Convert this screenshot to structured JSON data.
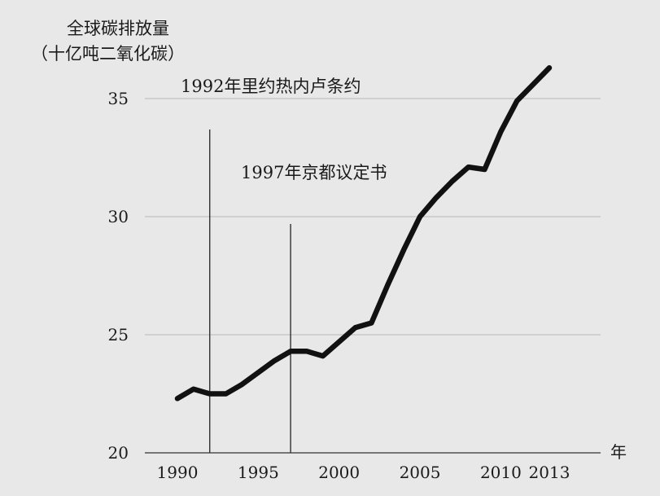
{
  "chart_data": {
    "type": "line",
    "title": "",
    "ylabel_lines": [
      "全球碳排放量",
      "（十亿吨二氧化碳）"
    ],
    "xlabel": "年",
    "xlim": [
      1990,
      2013
    ],
    "ylim": [
      20,
      36.5
    ],
    "yticks": [
      20,
      25,
      30,
      35
    ],
    "xticks": [
      1990,
      1995,
      2000,
      2005,
      2010,
      2013
    ],
    "grid": true,
    "series": [
      {
        "x": [
          1990,
          1991,
          1992,
          1993,
          1994,
          1995,
          1996,
          1997,
          1998,
          1999,
          2000,
          2001,
          2002,
          2003,
          2004,
          2005,
          2006,
          2007,
          2008,
          2009,
          2010,
          2011,
          2012,
          2013
        ],
        "values": [
          22.3,
          22.7,
          22.5,
          22.5,
          22.9,
          23.4,
          23.9,
          24.3,
          24.3,
          24.1,
          24.7,
          25.3,
          25.5,
          27.1,
          28.6,
          30.0,
          30.8,
          31.5,
          32.1,
          32.0,
          33.6,
          34.9,
          35.6,
          36.3
        ],
        "color": "#111111"
      }
    ],
    "annotations": [
      {
        "x": 1992,
        "y_top": 35.0,
        "text": "1992年里约热内卢条约"
      },
      {
        "x": 1997,
        "y_top": 31.0,
        "text": "1997年京都议定书"
      }
    ]
  }
}
